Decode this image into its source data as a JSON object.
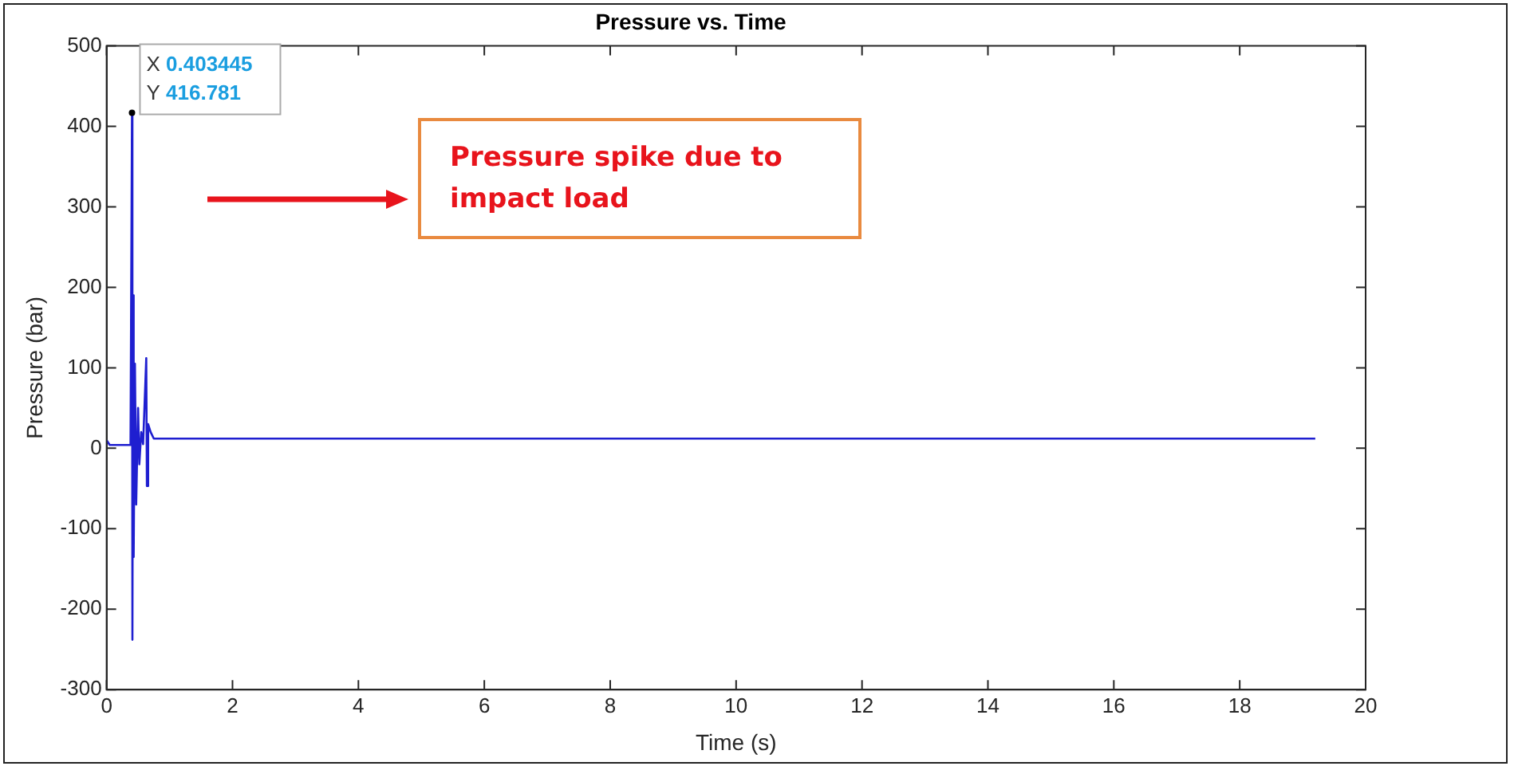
{
  "chart_data": {
    "type": "line",
    "title": "Pressure vs. Time",
    "xlabel": "Time (s)",
    "ylabel": "Pressure (bar)",
    "xlim": [
      0,
      20
    ],
    "ylim": [
      -300,
      500
    ],
    "xticks": [
      0,
      2,
      4,
      6,
      8,
      10,
      12,
      14,
      16,
      18,
      20
    ],
    "yticks": [
      -300,
      -200,
      -100,
      0,
      100,
      200,
      300,
      400,
      500
    ],
    "grid": false,
    "legend": false,
    "marker": "none",
    "line_style": "solid",
    "series": [
      {
        "color": "#1f1fd0",
        "x": [
          0,
          0.05,
          0.38,
          0.403445,
          0.41,
          0.42,
          0.43,
          0.45,
          0.47,
          0.5,
          0.52,
          0.55,
          0.58,
          0.63,
          0.64,
          0.66,
          0.7,
          0.75,
          19.2
        ],
        "values": [
          10,
          4,
          4,
          416.781,
          -238,
          190,
          -135,
          105,
          -70,
          50,
          -20,
          20,
          5,
          112,
          -47,
          30,
          20,
          12,
          12
        ]
      }
    ],
    "annotations": [
      {
        "text": "X 0.403445\nY 416.781",
        "x": 0.403445,
        "y": 416.781
      },
      "Pressure spike due to\nimpact load"
    ]
  }
}
